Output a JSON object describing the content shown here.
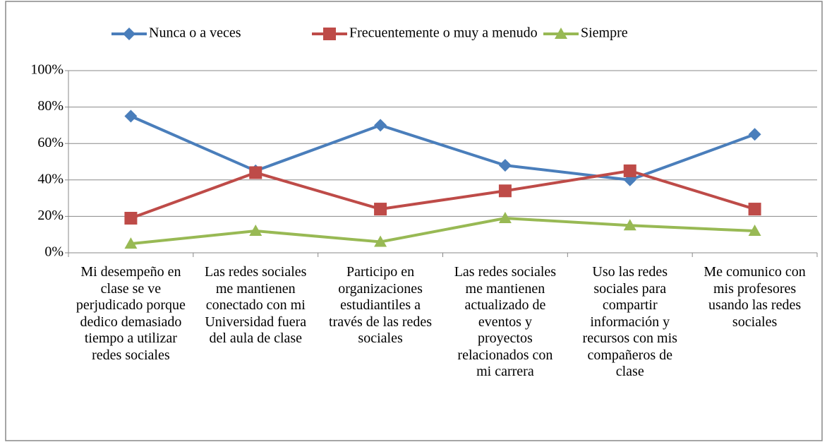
{
  "chart_data": {
    "type": "line",
    "categories": [
      "Mi desempeño en clase se ve perjudicado porque dedico demasiado tiempo a utilizar redes sociales",
      "Las redes sociales me mantienen conectado con mi Universidad fuera del aula de clase",
      "Participo en organizaciones estudiantiles a través de las redes sociales",
      "Las redes sociales me mantienen actualizado de eventos y proyectos relacionados con mi carrera",
      "Uso las redes sociales para compartir información y recursos con mis compañeros de clase",
      "Me comunico con mis profesores usando las redes sociales"
    ],
    "series": [
      {
        "name": "Nunca o a veces",
        "color": "#4a7ebb",
        "marker": "diamond",
        "values": [
          75,
          45,
          70,
          48,
          40,
          65
        ]
      },
      {
        "name": "Frecuentemente o muy a menudo",
        "color": "#be4b48",
        "marker": "square",
        "values": [
          19,
          44,
          24,
          34,
          45,
          24
        ]
      },
      {
        "name": "Siempre",
        "color": "#98b954",
        "marker": "triangle",
        "values": [
          5,
          12,
          6,
          19,
          15,
          12
        ]
      }
    ],
    "ylim": [
      0,
      100
    ],
    "yticks": [
      {
        "value": 0,
        "label": "0%"
      },
      {
        "value": 20,
        "label": "20%"
      },
      {
        "value": 40,
        "label": "40%"
      },
      {
        "value": 60,
        "label": "60%"
      },
      {
        "value": 80,
        "label": "80%"
      },
      {
        "value": 100,
        "label": "100%"
      }
    ],
    "grid": true,
    "legend": "top"
  }
}
